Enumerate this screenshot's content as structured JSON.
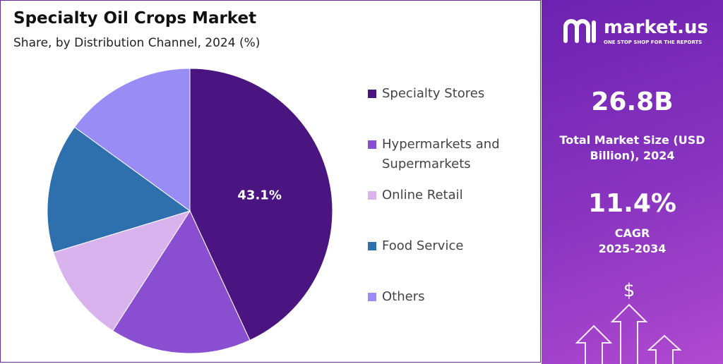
{
  "chart_data": {
    "type": "pie",
    "title": "Specialty Oil Crops Market",
    "subtitle": "Share, by Distribution Channel, 2024 (%)",
    "categories": [
      "Specialty Stores",
      "Hypermarkets and Supermarkets",
      "Online Retail",
      "Food Service",
      "Others"
    ],
    "values": [
      43.1,
      16,
      11.2,
      14.7,
      15
    ],
    "value_labels": [
      "43.1%",
      null,
      null,
      null,
      null
    ],
    "colors": [
      "#4a1580",
      "#8a4fd0",
      "#d9b3ee",
      "#2e6fae",
      "#9a8cf5"
    ]
  },
  "sidebar": {
    "logo": "market.us",
    "tagline": "ONE STOP SHOP FOR THE REPORTS",
    "market_size": "26.8B",
    "market_size_label": "Total Market Size (USD Billion), 2024",
    "cagr": "11.4%",
    "cagr_label": "CAGR",
    "cagr_period": "2025-2034"
  }
}
